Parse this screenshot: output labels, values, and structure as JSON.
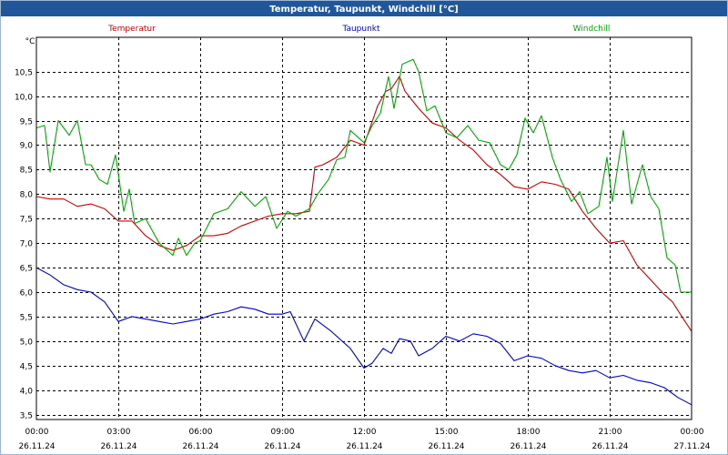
{
  "window": {
    "title": "Temperatur, Taupunkt, Windchill [°C]"
  },
  "colors": {
    "titlebar": "#20579a",
    "frame": "#9eb6d4",
    "temperatur": "#cc0000",
    "taupunkt": "#0000cc",
    "windchill": "#00aa00",
    "grid": "#000000"
  },
  "chart_data": {
    "type": "line",
    "title": "Temperatur, Taupunkt, Windchill [°C]",
    "ylabel": "°C",
    "ylim": [
      3.4,
      11.2
    ],
    "xlim": [
      0,
      24
    ],
    "y_ticks": [
      {
        "value": 3.5,
        "label": "3,5"
      },
      {
        "value": 4.0,
        "label": "4,0"
      },
      {
        "value": 4.5,
        "label": "4,5"
      },
      {
        "value": 5.0,
        "label": "5,0"
      },
      {
        "value": 5.5,
        "label": "5,5"
      },
      {
        "value": 6.0,
        "label": "6,0"
      },
      {
        "value": 6.5,
        "label": "6,5"
      },
      {
        "value": 7.0,
        "label": "7,0"
      },
      {
        "value": 7.5,
        "label": "7,5"
      },
      {
        "value": 8.0,
        "label": "8,0"
      },
      {
        "value": 8.5,
        "label": "8,5"
      },
      {
        "value": 9.0,
        "label": "9,0"
      },
      {
        "value": 9.5,
        "label": "9,5"
      },
      {
        "value": 10.0,
        "label": "10,0"
      },
      {
        "value": 10.5,
        "label": "10,5"
      }
    ],
    "x_ticks": [
      {
        "value": 0,
        "time": "00:00",
        "date": "26.11.24"
      },
      {
        "value": 3,
        "time": "03:00",
        "date": "26.11.24"
      },
      {
        "value": 6,
        "time": "06:00",
        "date": "26.11.24"
      },
      {
        "value": 9,
        "time": "09:00",
        "date": "26.11.24"
      },
      {
        "value": 12,
        "time": "12:00",
        "date": "26.11.24"
      },
      {
        "value": 15,
        "time": "15:00",
        "date": "26.11.24"
      },
      {
        "value": 18,
        "time": "18:00",
        "date": "26.11.24"
      },
      {
        "value": 21,
        "time": "21:00",
        "date": "26.11.24"
      },
      {
        "value": 24,
        "time": "00:00",
        "date": "27.11.24"
      }
    ],
    "series": [
      {
        "name": "Temperatur",
        "color": "#cc0000",
        "points": [
          [
            0,
            7.95
          ],
          [
            0.5,
            7.9
          ],
          [
            1,
            7.9
          ],
          [
            1.5,
            7.75
          ],
          [
            2,
            7.8
          ],
          [
            2.5,
            7.7
          ],
          [
            3,
            7.45
          ],
          [
            3.5,
            7.45
          ],
          [
            4,
            7.15
          ],
          [
            4.5,
            6.95
          ],
          [
            5,
            6.85
          ],
          [
            5.5,
            6.95
          ],
          [
            6,
            7.15
          ],
          [
            6.5,
            7.15
          ],
          [
            7,
            7.2
          ],
          [
            7.5,
            7.35
          ],
          [
            8,
            7.45
          ],
          [
            8.5,
            7.55
          ],
          [
            9,
            7.6
          ],
          [
            9.5,
            7.6
          ],
          [
            10,
            7.65
          ],
          [
            10.2,
            8.55
          ],
          [
            10.5,
            8.6
          ],
          [
            11,
            8.75
          ],
          [
            11.5,
            9.1
          ],
          [
            12,
            9.0
          ],
          [
            12.5,
            9.8
          ],
          [
            12.8,
            10.1
          ],
          [
            13,
            10.15
          ],
          [
            13.3,
            10.4
          ],
          [
            13.5,
            10.1
          ],
          [
            14,
            9.75
          ],
          [
            14.5,
            9.45
          ],
          [
            15,
            9.35
          ],
          [
            15.5,
            9.1
          ],
          [
            16,
            8.9
          ],
          [
            16.5,
            8.6
          ],
          [
            17,
            8.4
          ],
          [
            17.5,
            8.15
          ],
          [
            18,
            8.1
          ],
          [
            18.5,
            8.25
          ],
          [
            19,
            8.2
          ],
          [
            19.5,
            8.1
          ],
          [
            20,
            7.65
          ],
          [
            20.5,
            7.3
          ],
          [
            21,
            7.0
          ],
          [
            21.5,
            7.05
          ],
          [
            22,
            6.55
          ],
          [
            22.5,
            6.25
          ],
          [
            23,
            5.95
          ],
          [
            23.3,
            5.8
          ],
          [
            23.7,
            5.45
          ],
          [
            24,
            5.2
          ]
        ]
      },
      {
        "name": "Taupunkt",
        "color": "#0000cc",
        "points": [
          [
            0,
            6.5
          ],
          [
            0.5,
            6.35
          ],
          [
            1,
            6.15
          ],
          [
            1.5,
            6.05
          ],
          [
            2,
            6.0
          ],
          [
            2.5,
            5.8
          ],
          [
            3,
            5.4
          ],
          [
            3.5,
            5.5
          ],
          [
            4,
            5.45
          ],
          [
            4.5,
            5.4
          ],
          [
            5,
            5.35
          ],
          [
            5.5,
            5.4
          ],
          [
            6,
            5.45
          ],
          [
            6.5,
            5.55
          ],
          [
            7,
            5.6
          ],
          [
            7.5,
            5.7
          ],
          [
            8,
            5.65
          ],
          [
            8.5,
            5.55
          ],
          [
            9,
            5.55
          ],
          [
            9.3,
            5.6
          ],
          [
            9.8,
            5.0
          ],
          [
            10.2,
            5.45
          ],
          [
            10.8,
            5.2
          ],
          [
            11.5,
            4.85
          ],
          [
            12,
            4.45
          ],
          [
            12.3,
            4.55
          ],
          [
            12.7,
            4.85
          ],
          [
            13,
            4.75
          ],
          [
            13.3,
            5.05
          ],
          [
            13.7,
            5.0
          ],
          [
            14,
            4.7
          ],
          [
            14.5,
            4.85
          ],
          [
            15,
            5.1
          ],
          [
            15.5,
            5.0
          ],
          [
            16,
            5.15
          ],
          [
            16.5,
            5.1
          ],
          [
            17,
            4.95
          ],
          [
            17.5,
            4.6
          ],
          [
            18,
            4.7
          ],
          [
            18.5,
            4.65
          ],
          [
            19,
            4.5
          ],
          [
            19.5,
            4.4
          ],
          [
            20,
            4.35
          ],
          [
            20.5,
            4.4
          ],
          [
            21,
            4.25
          ],
          [
            21.5,
            4.3
          ],
          [
            22,
            4.2
          ],
          [
            22.5,
            4.15
          ],
          [
            23,
            4.05
          ],
          [
            23.5,
            3.85
          ],
          [
            24,
            3.7
          ]
        ]
      },
      {
        "name": "Windchill",
        "color": "#00aa00",
        "points": [
          [
            0,
            9.35
          ],
          [
            0.3,
            9.4
          ],
          [
            0.5,
            8.45
          ],
          [
            0.8,
            9.5
          ],
          [
            1.2,
            9.2
          ],
          [
            1.5,
            9.5
          ],
          [
            1.8,
            8.6
          ],
          [
            2,
            8.6
          ],
          [
            2.3,
            8.3
          ],
          [
            2.6,
            8.2
          ],
          [
            2.9,
            8.8
          ],
          [
            3.2,
            7.65
          ],
          [
            3.4,
            8.1
          ],
          [
            3.6,
            7.4
          ],
          [
            4,
            7.5
          ],
          [
            4.5,
            7.0
          ],
          [
            5,
            6.75
          ],
          [
            5.2,
            7.1
          ],
          [
            5.5,
            6.75
          ],
          [
            5.8,
            7.0
          ],
          [
            6,
            7.05
          ],
          [
            6.5,
            7.6
          ],
          [
            7,
            7.7
          ],
          [
            7.5,
            8.05
          ],
          [
            8,
            7.75
          ],
          [
            8.4,
            7.95
          ],
          [
            8.8,
            7.3
          ],
          [
            9.2,
            7.65
          ],
          [
            9.5,
            7.55
          ],
          [
            10,
            7.7
          ],
          [
            10.3,
            8.0
          ],
          [
            10.7,
            8.3
          ],
          [
            11,
            8.7
          ],
          [
            11.3,
            8.75
          ],
          [
            11.5,
            9.3
          ],
          [
            12,
            9.05
          ],
          [
            12.3,
            9.4
          ],
          [
            12.6,
            9.65
          ],
          [
            12.9,
            10.4
          ],
          [
            13.1,
            9.75
          ],
          [
            13.4,
            10.65
          ],
          [
            13.8,
            10.75
          ],
          [
            14,
            10.5
          ],
          [
            14.3,
            9.7
          ],
          [
            14.6,
            9.8
          ],
          [
            15,
            9.25
          ],
          [
            15.4,
            9.15
          ],
          [
            15.8,
            9.4
          ],
          [
            16.2,
            9.1
          ],
          [
            16.6,
            9.05
          ],
          [
            17,
            8.6
          ],
          [
            17.3,
            8.5
          ],
          [
            17.6,
            8.8
          ],
          [
            17.9,
            9.55
          ],
          [
            18.2,
            9.25
          ],
          [
            18.5,
            9.6
          ],
          [
            18.9,
            8.75
          ],
          [
            19.2,
            8.3
          ],
          [
            19.6,
            7.85
          ],
          [
            19.9,
            8.05
          ],
          [
            20.2,
            7.6
          ],
          [
            20.6,
            7.75
          ],
          [
            20.9,
            8.75
          ],
          [
            21.1,
            7.85
          ],
          [
            21.5,
            9.3
          ],
          [
            21.8,
            7.8
          ],
          [
            22.2,
            8.6
          ],
          [
            22.5,
            7.95
          ],
          [
            22.8,
            7.7
          ],
          [
            23.1,
            6.7
          ],
          [
            23.4,
            6.55
          ],
          [
            23.6,
            6.0
          ],
          [
            24,
            6.0
          ]
        ]
      }
    ]
  }
}
